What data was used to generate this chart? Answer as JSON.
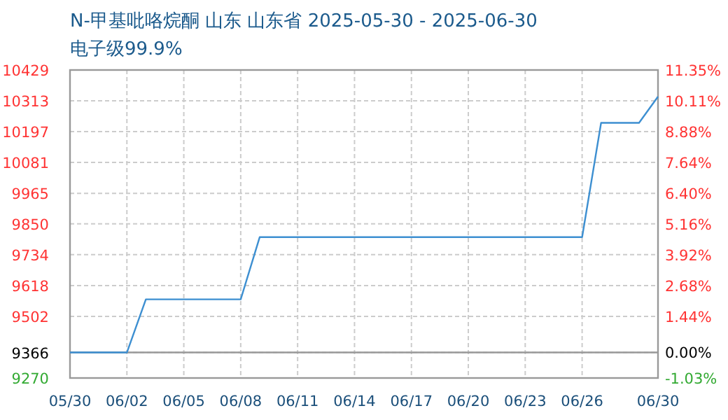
{
  "chart_data": {
    "type": "line",
    "title": "N-甲基吡咯烷酮 山东 山东省 2025-05-30 - 2025-06-30",
    "subtitle": "电子级99.9%",
    "x": [
      "--05-30",
      "--06-02",
      "--06-03",
      "--06-08",
      "--06-09",
      "--06-26",
      "--06-27",
      "--06-29",
      "--06-30"
    ],
    "series": [
      {
        "color": "#3d8fd1",
        "values": [
          9366,
          9366,
          9566,
          9566,
          9800,
          9800,
          10230,
          10230,
          10329
        ]
      }
    ],
    "xlim": [
      "--05-30",
      "--06-30"
    ],
    "xticks": [
      {
        "value": "--05-30",
        "label": "05/30"
      },
      {
        "value": "--06-02",
        "label": "06/02"
      },
      {
        "value": "--06-05",
        "label": "06/05"
      },
      {
        "value": "--06-08",
        "label": "06/08"
      },
      {
        "value": "--06-11",
        "label": "06/11"
      },
      {
        "value": "--06-14",
        "label": "06/14"
      },
      {
        "value": "--06-17",
        "label": "06/17"
      },
      {
        "value": "--06-20",
        "label": "06/20"
      },
      {
        "value": "--06-23",
        "label": "06/23"
      },
      {
        "value": "--06-26",
        "label": "06/26"
      },
      {
        "value": "--06-30",
        "label": "06/30"
      }
    ],
    "ylim": [
      9270,
      10429
    ],
    "yticks": [
      9270,
      9366,
      9502,
      9618,
      9734,
      9850,
      9965,
      10081,
      10197,
      10313,
      10429
    ],
    "y2lim": [
      -1.03,
      11.35
    ],
    "y2ticks": [
      {
        "value": -1.03,
        "label": "-1.03%"
      },
      {
        "value": 0,
        "label": "0.00%"
      },
      {
        "value": 1.44,
        "label": "1.44%"
      },
      {
        "value": 2.68,
        "label": "2.68%"
      },
      {
        "value": 3.92,
        "label": "3.92%"
      },
      {
        "value": 5.16,
        "label": "5.16%"
      },
      {
        "value": 6.4,
        "label": "6.40%"
      },
      {
        "value": 7.64,
        "label": "7.64%"
      },
      {
        "value": 8.88,
        "label": "8.88%"
      },
      {
        "value": 10.11,
        "label": "10.11%"
      },
      {
        "value": 11.35,
        "label": "11.35%"
      }
    ],
    "ref_lines": [
      {
        "axis": "y",
        "value": 9366,
        "color": "#999999"
      }
    ],
    "grid": true,
    "line_style": "solid",
    "marker": "none"
  }
}
